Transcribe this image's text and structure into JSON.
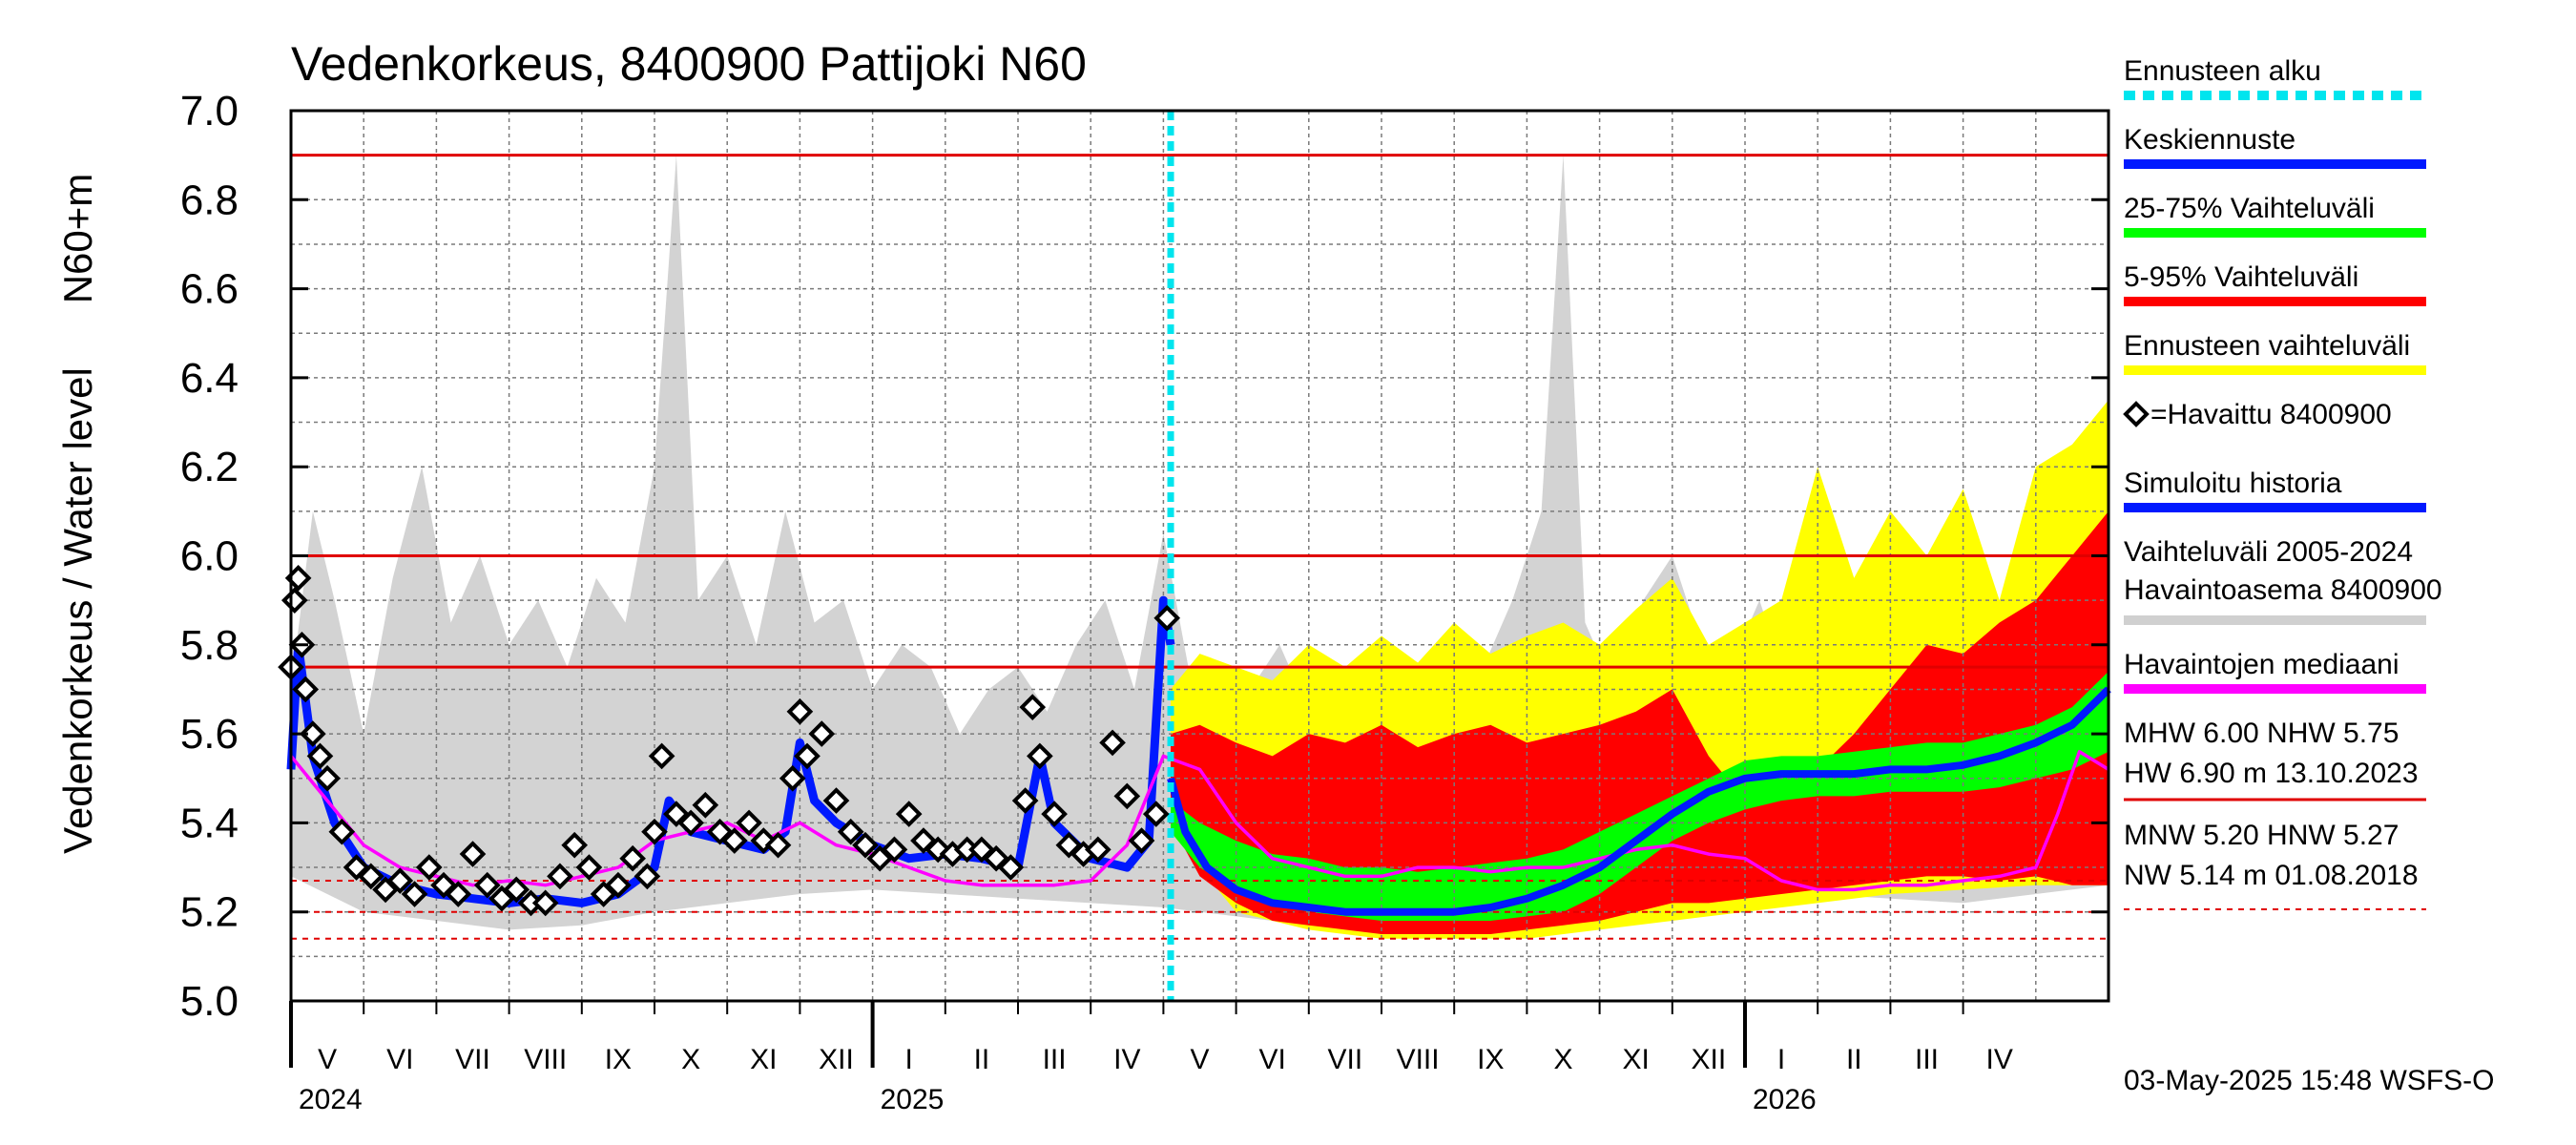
{
  "chart_data": {
    "type": "line",
    "title": "Vedenkorkeus, 8400900 Pattijoki N60",
    "ylabel_main": "Vedenkorkeus / Water level",
    "ylabel_unit": "N60+m",
    "ylim": [
      5.0,
      7.0
    ],
    "yticks": [
      "5.0",
      "5.2",
      "5.4",
      "5.6",
      "5.8",
      "6.0",
      "6.2",
      "6.4",
      "6.6",
      "6.8",
      "7.0"
    ],
    "x_range_months": [
      0,
      25
    ],
    "forecast_start_month": 12.1,
    "months": [
      {
        "label": "V",
        "start": 0
      },
      {
        "label": "VI",
        "start": 1
      },
      {
        "label": "VII",
        "start": 2
      },
      {
        "label": "VIII",
        "start": 3
      },
      {
        "label": "IX",
        "start": 4
      },
      {
        "label": "X",
        "start": 5
      },
      {
        "label": "XI",
        "start": 6
      },
      {
        "label": "XII",
        "start": 7
      },
      {
        "label": "I",
        "start": 8
      },
      {
        "label": "II",
        "start": 9
      },
      {
        "label": "III",
        "start": 10
      },
      {
        "label": "IV",
        "start": 11
      },
      {
        "label": "V",
        "start": 12
      },
      {
        "label": "VI",
        "start": 13
      },
      {
        "label": "VII",
        "start": 14
      },
      {
        "label": "VIII",
        "start": 15
      },
      {
        "label": "IX",
        "start": 16
      },
      {
        "label": "X",
        "start": 17
      },
      {
        "label": "XI",
        "start": 18
      },
      {
        "label": "XII",
        "start": 19
      },
      {
        "label": "I",
        "start": 20
      },
      {
        "label": "II",
        "start": 21
      },
      {
        "label": "III",
        "start": 22
      },
      {
        "label": "IV",
        "start": 23
      }
    ],
    "years": [
      {
        "label": "2024",
        "at": 0
      },
      {
        "label": "2025",
        "at": 8
      },
      {
        "label": "2026",
        "at": 20
      }
    ],
    "reference_lines": [
      {
        "name": "HW",
        "value": 6.9,
        "style": "solid"
      },
      {
        "name": "MHW",
        "value": 6.0,
        "style": "solid"
      },
      {
        "name": "NHW",
        "value": 5.75,
        "style": "solid"
      },
      {
        "name": "HNW",
        "value": 5.27,
        "style": "dashed"
      },
      {
        "name": "MNW",
        "value": 5.2,
        "style": "dashed"
      },
      {
        "name": "NW",
        "value": 5.14,
        "style": "dashed"
      }
    ],
    "series": {
      "history_range_upper": {
        "x": [
          0,
          0.3,
          0.6,
          1.0,
          1.4,
          1.8,
          2.2,
          2.6,
          3.0,
          3.4,
          3.8,
          4.2,
          4.6,
          5.0,
          5.3,
          5.6,
          6.0,
          6.4,
          6.8,
          7.2,
          7.6,
          8.0,
          8.4,
          8.8,
          9.2,
          9.6,
          10.0,
          10.4,
          10.8,
          11.2,
          11.6,
          12.0,
          12.4,
          12.8,
          13.2,
          13.6,
          14.0,
          14.4,
          14.8,
          15.2,
          15.6,
          16.0,
          16.4,
          16.8,
          17.2,
          17.5,
          17.8,
          18.2,
          18.6,
          19.0,
          19.4,
          19.8,
          20.2,
          20.6,
          21.0,
          21.4,
          21.8,
          22.2,
          22.6,
          23.0,
          23.4,
          23.8,
          24.2,
          24.6,
          25.0
        ],
        "values": [
          5.7,
          6.1,
          5.9,
          5.6,
          5.95,
          6.2,
          5.85,
          6.0,
          5.8,
          5.9,
          5.75,
          5.95,
          5.85,
          6.2,
          6.9,
          5.9,
          6.0,
          5.8,
          6.1,
          5.85,
          5.9,
          5.7,
          5.8,
          5.75,
          5.6,
          5.7,
          5.75,
          5.65,
          5.8,
          5.9,
          5.7,
          6.05,
          5.7,
          5.6,
          5.7,
          5.8,
          5.65,
          5.75,
          5.6,
          5.7,
          5.65,
          5.8,
          5.75,
          5.9,
          6.1,
          6.9,
          5.85,
          5.7,
          5.9,
          6.0,
          5.8,
          5.75,
          5.9,
          5.7,
          5.8,
          5.75,
          5.65,
          5.8,
          5.75,
          5.9,
          5.85,
          5.8,
          5.95,
          5.85,
          5.7
        ]
      },
      "history_range_lower": {
        "x": [
          0,
          1,
          2,
          3,
          4,
          5,
          6,
          7,
          8,
          9,
          10,
          11,
          12,
          13,
          14,
          15,
          16,
          17,
          18,
          19,
          20,
          21,
          22,
          23,
          24,
          25
        ],
        "values": [
          5.28,
          5.2,
          5.18,
          5.16,
          5.17,
          5.2,
          5.22,
          5.24,
          5.25,
          5.24,
          5.23,
          5.22,
          5.21,
          5.19,
          5.17,
          5.16,
          5.17,
          5.19,
          5.21,
          5.23,
          5.24,
          5.24,
          5.23,
          5.22,
          5.24,
          5.26
        ]
      },
      "forecast_5_95_upper": {
        "x": [
          12.1,
          12.5,
          13.0,
          13.5,
          14.0,
          14.5,
          15.0,
          15.5,
          16.0,
          16.5,
          17.0,
          17.5,
          18.0,
          18.5,
          19.0,
          19.5,
          20.0,
          20.5,
          21.0,
          21.5,
          22.0,
          22.5,
          23.0,
          23.5,
          24.0,
          24.5,
          25.0
        ],
        "values": [
          5.6,
          5.62,
          5.58,
          5.55,
          5.6,
          5.58,
          5.62,
          5.57,
          5.6,
          5.62,
          5.58,
          5.6,
          5.62,
          5.65,
          5.7,
          5.55,
          5.45,
          5.48,
          5.52,
          5.6,
          5.7,
          5.8,
          5.78,
          5.85,
          5.9,
          6.0,
          6.1
        ]
      },
      "forecast_5_95_lower": {
        "x": [
          12.1,
          12.5,
          13.0,
          13.5,
          14.0,
          14.5,
          15.0,
          15.5,
          16.0,
          16.5,
          17.0,
          17.5,
          18.0,
          18.5,
          19.0,
          19.5,
          20.0,
          20.5,
          21.0,
          21.5,
          22.0,
          22.5,
          23.0,
          23.5,
          24.0,
          24.5,
          25.0
        ],
        "values": [
          5.4,
          5.28,
          5.22,
          5.18,
          5.17,
          5.16,
          5.15,
          5.15,
          5.15,
          5.15,
          5.16,
          5.17,
          5.18,
          5.2,
          5.22,
          5.22,
          5.23,
          5.24,
          5.25,
          5.26,
          5.27,
          5.28,
          5.28,
          5.27,
          5.28,
          5.26,
          5.26
        ]
      },
      "forecast_25_75_upper": {
        "x": [
          12.1,
          12.5,
          13.0,
          13.5,
          14.0,
          14.5,
          15.0,
          15.5,
          16.0,
          16.5,
          17.0,
          17.5,
          18.0,
          18.5,
          19.0,
          19.5,
          20.0,
          20.5,
          21.0,
          21.5,
          22.0,
          22.5,
          23.0,
          23.5,
          24.0,
          24.5,
          25.0
        ],
        "values": [
          5.45,
          5.4,
          5.36,
          5.33,
          5.32,
          5.3,
          5.3,
          5.29,
          5.3,
          5.31,
          5.32,
          5.34,
          5.38,
          5.42,
          5.46,
          5.5,
          5.54,
          5.55,
          5.55,
          5.56,
          5.57,
          5.58,
          5.58,
          5.6,
          5.62,
          5.66,
          5.74
        ]
      },
      "forecast_25_75_lower": {
        "x": [
          12.1,
          12.5,
          13.0,
          13.5,
          14.0,
          14.5,
          15.0,
          15.5,
          16.0,
          16.5,
          17.0,
          17.5,
          18.0,
          18.5,
          19.0,
          19.5,
          20.0,
          20.5,
          21.0,
          21.5,
          22.0,
          22.5,
          23.0,
          23.5,
          24.0,
          24.5,
          25.0
        ],
        "values": [
          5.38,
          5.3,
          5.25,
          5.22,
          5.2,
          5.19,
          5.18,
          5.18,
          5.18,
          5.18,
          5.19,
          5.2,
          5.24,
          5.3,
          5.36,
          5.4,
          5.43,
          5.45,
          5.46,
          5.46,
          5.47,
          5.47,
          5.47,
          5.48,
          5.5,
          5.52,
          5.56
        ]
      },
      "forecast_range_upper": {
        "x": [
          12.1,
          12.5,
          13.0,
          13.5,
          14.0,
          14.5,
          15.0,
          15.5,
          16.0,
          16.5,
          17.0,
          17.5,
          18.0,
          18.5,
          19.0,
          19.5,
          20.0,
          20.5,
          21.0,
          21.5,
          22.0,
          22.5,
          23.0,
          23.5,
          24.0,
          24.5,
          25.0
        ],
        "values": [
          5.7,
          5.78,
          5.75,
          5.72,
          5.8,
          5.75,
          5.82,
          5.76,
          5.85,
          5.78,
          5.82,
          5.85,
          5.8,
          5.88,
          5.95,
          5.8,
          5.85,
          5.9,
          6.2,
          5.95,
          6.1,
          6.0,
          6.15,
          5.9,
          6.2,
          6.25,
          6.35
        ]
      },
      "forecast_range_lower": {
        "x": [
          12.1,
          13.0,
          14.0,
          15.0,
          16.0,
          17.0,
          18.0,
          19.0,
          20.0,
          21.0,
          22.0,
          23.0,
          24.0,
          25.0
        ],
        "values": [
          5.38,
          5.2,
          5.16,
          5.14,
          5.14,
          5.14,
          5.16,
          5.18,
          5.2,
          5.22,
          5.24,
          5.25,
          5.26,
          5.26
        ]
      },
      "median": {
        "x": [
          0,
          0.5,
          1.0,
          1.5,
          2.0,
          2.5,
          3.0,
          3.5,
          4.0,
          4.5,
          5.0,
          5.5,
          6.0,
          6.5,
          7.0,
          7.5,
          8.0,
          8.5,
          9.0,
          9.5,
          10.0,
          10.5,
          11.0,
          11.5,
          12.0,
          12.5,
          13.0,
          13.5,
          14.0,
          14.5,
          15.0,
          15.5,
          16.0,
          16.5,
          17.0,
          17.5,
          18.0,
          18.5,
          19.0,
          19.5,
          20.0,
          20.5,
          21.0,
          21.5,
          22.0,
          22.5,
          23.0,
          23.5,
          24.0,
          24.3,
          24.6,
          25.0
        ],
        "values": [
          5.55,
          5.45,
          5.35,
          5.3,
          5.28,
          5.26,
          5.27,
          5.26,
          5.28,
          5.3,
          5.36,
          5.38,
          5.4,
          5.36,
          5.4,
          5.35,
          5.33,
          5.3,
          5.27,
          5.26,
          5.26,
          5.26,
          5.27,
          5.35,
          5.55,
          5.52,
          5.4,
          5.32,
          5.3,
          5.28,
          5.28,
          5.3,
          5.3,
          5.29,
          5.3,
          5.3,
          5.32,
          5.34,
          5.35,
          5.33,
          5.32,
          5.27,
          5.25,
          5.25,
          5.26,
          5.26,
          5.27,
          5.28,
          5.3,
          5.42,
          5.56,
          5.52
        ]
      },
      "simulated_history": {
        "x": [
          0,
          0.1,
          0.3,
          0.6,
          1.0,
          1.5,
          2.0,
          2.5,
          3.0,
          3.5,
          4.0,
          4.5,
          5.0,
          5.2,
          5.5,
          6.0,
          6.5,
          6.8,
          7.0,
          7.2,
          7.5,
          8.0,
          8.5,
          9.0,
          9.5,
          10.0,
          10.3,
          10.5,
          11.0,
          11.5,
          11.8,
          12.0,
          12.1
        ],
        "values": [
          5.52,
          5.8,
          5.55,
          5.4,
          5.3,
          5.26,
          5.24,
          5.23,
          5.22,
          5.23,
          5.22,
          5.24,
          5.3,
          5.45,
          5.38,
          5.36,
          5.34,
          5.38,
          5.58,
          5.45,
          5.4,
          5.35,
          5.32,
          5.33,
          5.32,
          5.3,
          5.55,
          5.4,
          5.32,
          5.3,
          5.36,
          5.9,
          5.8
        ]
      },
      "mean_forecast": {
        "x": [
          12.1,
          12.3,
          12.6,
          13.0,
          13.5,
          14.0,
          14.5,
          15.0,
          15.5,
          16.0,
          16.5,
          17.0,
          17.5,
          18.0,
          18.5,
          19.0,
          19.5,
          20.0,
          20.5,
          21.0,
          21.5,
          22.0,
          22.5,
          23.0,
          23.5,
          24.0,
          24.5,
          25.0
        ],
        "values": [
          5.5,
          5.38,
          5.3,
          5.25,
          5.22,
          5.21,
          5.2,
          5.2,
          5.2,
          5.2,
          5.21,
          5.23,
          5.26,
          5.3,
          5.36,
          5.42,
          5.47,
          5.5,
          5.51,
          5.51,
          5.51,
          5.52,
          5.52,
          5.53,
          5.55,
          5.58,
          5.62,
          5.7
        ]
      },
      "observed": {
        "x": [
          0,
          0.05,
          0.1,
          0.15,
          0.2,
          0.3,
          0.4,
          0.5,
          0.7,
          0.9,
          1.1,
          1.3,
          1.5,
          1.7,
          1.9,
          2.1,
          2.3,
          2.5,
          2.7,
          2.9,
          3.1,
          3.3,
          3.5,
          3.7,
          3.9,
          4.1,
          4.3,
          4.5,
          4.7,
          4.9,
          5.0,
          5.1,
          5.3,
          5.5,
          5.7,
          5.9,
          6.1,
          6.3,
          6.5,
          6.7,
          6.9,
          7.0,
          7.1,
          7.3,
          7.5,
          7.7,
          7.9,
          8.1,
          8.3,
          8.5,
          8.7,
          8.9,
          9.1,
          9.3,
          9.5,
          9.7,
          9.9,
          10.1,
          10.2,
          10.3,
          10.5,
          10.7,
          10.9,
          11.1,
          11.3,
          11.5,
          11.7,
          11.9,
          12.05
        ],
        "values": [
          5.75,
          5.9,
          5.95,
          5.8,
          5.7,
          5.6,
          5.55,
          5.5,
          5.38,
          5.3,
          5.28,
          5.25,
          5.27,
          5.24,
          5.3,
          5.26,
          5.24,
          5.33,
          5.26,
          5.23,
          5.25,
          5.22,
          5.22,
          5.28,
          5.35,
          5.3,
          5.24,
          5.26,
          5.32,
          5.28,
          5.38,
          5.55,
          5.42,
          5.4,
          5.44,
          5.38,
          5.36,
          5.4,
          5.36,
          5.35,
          5.5,
          5.65,
          5.55,
          5.6,
          5.45,
          5.38,
          5.35,
          5.32,
          5.34,
          5.42,
          5.36,
          5.34,
          5.33,
          5.34,
          5.34,
          5.32,
          5.3,
          5.45,
          5.66,
          5.55,
          5.42,
          5.35,
          5.33,
          5.34,
          5.58,
          5.46,
          5.36,
          5.42,
          5.86
        ]
      }
    },
    "legend": [
      {
        "label": "Ennusteen alku",
        "color": "#00e5ee",
        "style": "dotted"
      },
      {
        "label": "Keskiennuste",
        "color": "#0019ff",
        "style": "solid"
      },
      {
        "label": "25-75% Vaihteluväli",
        "color": "#00ff00",
        "style": "solid"
      },
      {
        "label": "5-95% Vaihteluväli",
        "color": "#ff0000",
        "style": "solid"
      },
      {
        "label": "Ennusteen vaihteluväli",
        "color": "#ffff00",
        "style": "solid"
      },
      {
        "label": "=Havaittu 8400900",
        "color": "#000000",
        "style": "marker"
      },
      {
        "label": "Simuloitu historia",
        "color": "#0019ff",
        "style": "solid"
      },
      {
        "label": "Vaihteluväli 2005-2024",
        "label2": " Havaintoasema 8400900",
        "color": "#d0d0d0",
        "style": "solid"
      },
      {
        "label": "Havaintojen mediaani",
        "color": "#ff00ff",
        "style": "solid"
      }
    ],
    "stats": {
      "line1": "MHW   6.00 NHW   5.75",
      "line2": "HW   6.90 m 13.10.2023",
      "line3": "MNW   5.20 HNW   5.27",
      "line4": "NW   5.14 m 01.08.2018"
    },
    "footer": "03-May-2025 15:48 WSFS-O",
    "colors": {
      "history_range": "#d3d3d3",
      "forecast_range": "#ffff00",
      "range_5_95": "#ff0000",
      "range_25_75": "#00ff00",
      "mean_forecast": "#0019ff",
      "simulated": "#0019ff",
      "median": "#ff00ff",
      "observed": "#000000",
      "forecast_start": "#00e5ee",
      "reference": "#e00000"
    }
  }
}
